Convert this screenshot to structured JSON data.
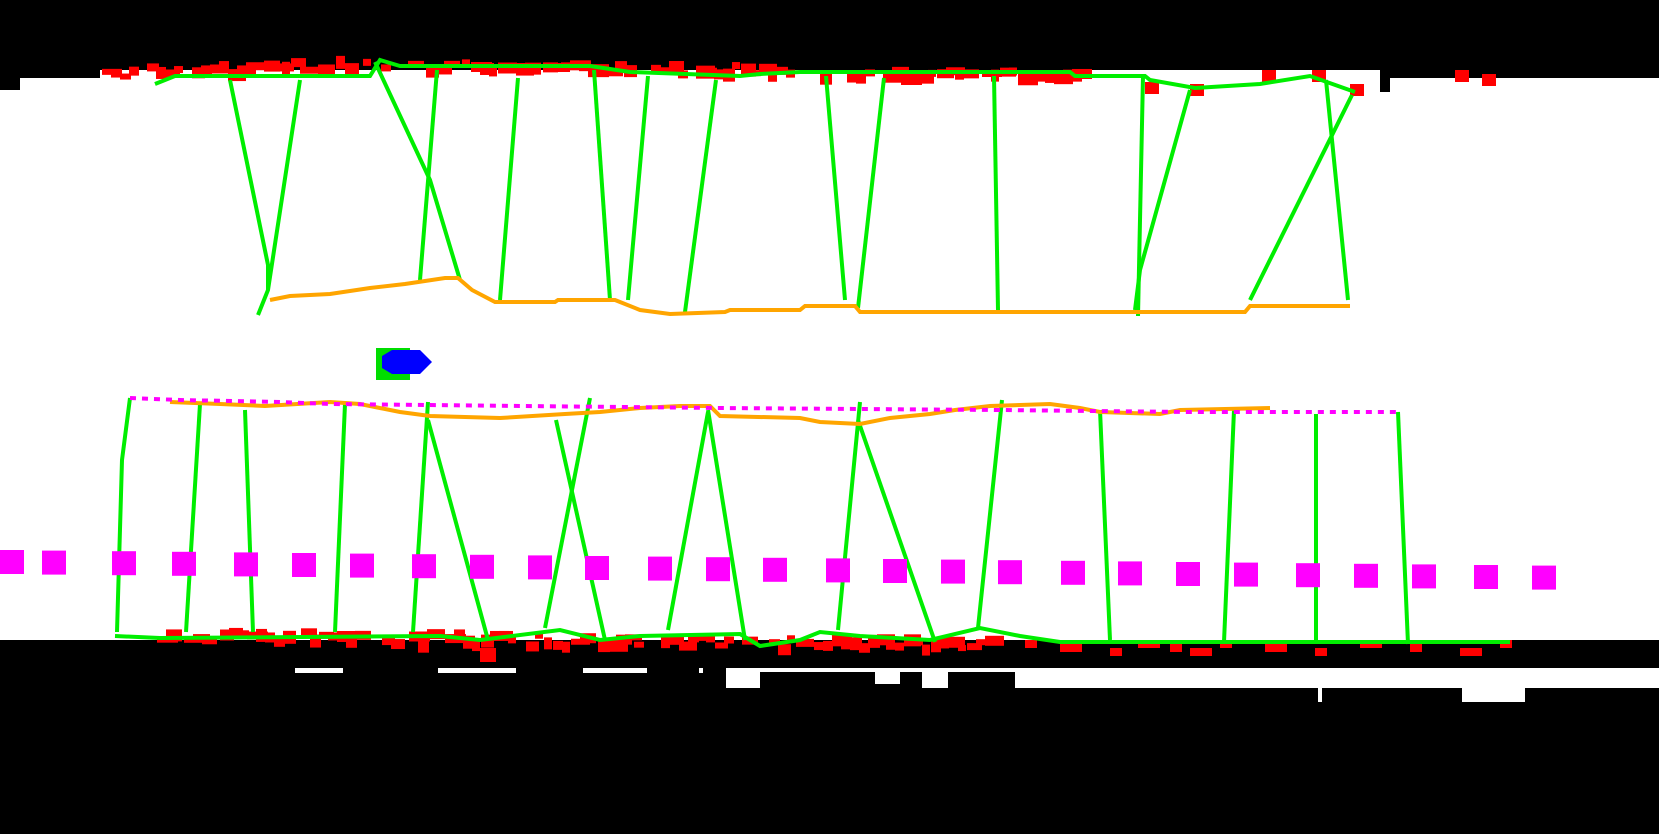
{
  "scene": {
    "type": "lane-detection-overlay",
    "colors": {
      "background": "#000000",
      "lane_fill": "#ffffff",
      "edge_points": "#ff0000",
      "lane_lines": "#00ee00",
      "estimated_boundary": "#ffa500",
      "reference_boundary": "#ff00ff",
      "vehicle": "#0000ff",
      "vehicle_box": "#00dd00"
    },
    "icons": {
      "vehicle": "vehicle-marker-icon"
    }
  }
}
